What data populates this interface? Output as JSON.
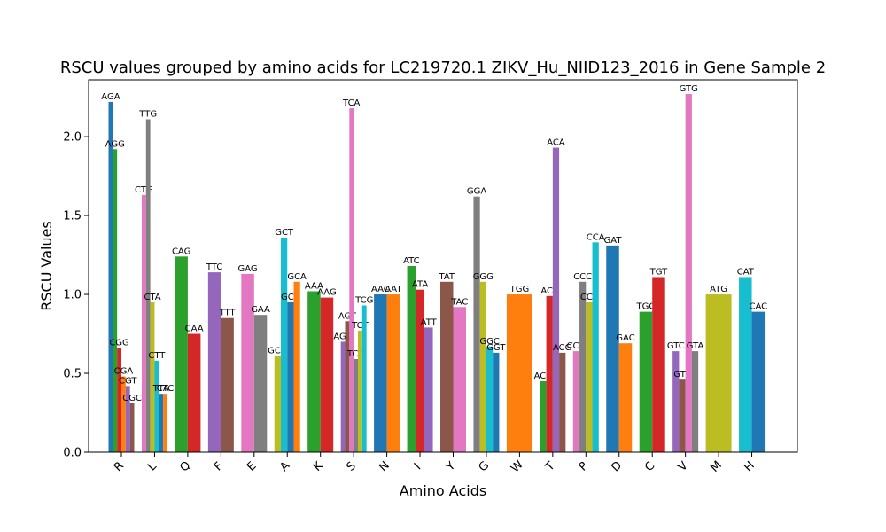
{
  "chart_data": {
    "type": "bar",
    "title": "RSCU values grouped by amino acids for LC219720.1 ZIKV_Hu_NIID123_2016 in Gene Sample 2",
    "xlabel": "Amino Acids",
    "ylabel": "RSCU Values",
    "ylim": [
      0,
      2.36
    ],
    "yticks": [
      "0.0",
      "0.5",
      "1.0",
      "1.5",
      "2.0"
    ],
    "grid": false,
    "groups": [
      {
        "amino_acid": "R",
        "codons": [
          {
            "codon": "AGA",
            "value": 2.22,
            "color": "#1f77b4"
          },
          {
            "codon": "AGG",
            "value": 1.92,
            "color": "#2ca02c"
          },
          {
            "codon": "CGG",
            "value": 0.66,
            "color": "#d62728"
          },
          {
            "codon": "CGA",
            "value": 0.48,
            "color": "#ff7f0e"
          },
          {
            "codon": "CGT",
            "value": 0.42,
            "color": "#9467bd"
          },
          {
            "codon": "CGC",
            "value": 0.31,
            "color": "#8c564b"
          }
        ]
      },
      {
        "amino_acid": "L",
        "codons": [
          {
            "codon": "CTG",
            "value": 1.63,
            "color": "#e377c2"
          },
          {
            "codon": "TTG",
            "value": 2.11,
            "color": "#7f7f7f"
          },
          {
            "codon": "CTA",
            "value": 0.95,
            "color": "#bcbd22"
          },
          {
            "codon": "CTT",
            "value": 0.58,
            "color": "#17becf"
          },
          {
            "codon": "TTA",
            "value": 0.37,
            "color": "#1f77b4"
          },
          {
            "codon": "CTC",
            "value": 0.37,
            "color": "#ff7f0e"
          }
        ]
      },
      {
        "amino_acid": "Q",
        "codons": [
          {
            "codon": "CAG",
            "value": 1.24,
            "color": "#2ca02c"
          },
          {
            "codon": "CAA",
            "value": 0.75,
            "color": "#d62728"
          }
        ]
      },
      {
        "amino_acid": "F",
        "codons": [
          {
            "codon": "TTC",
            "value": 1.14,
            "color": "#9467bd"
          },
          {
            "codon": "TTT",
            "value": 0.85,
            "color": "#8c564b"
          }
        ]
      },
      {
        "amino_acid": "E",
        "codons": [
          {
            "codon": "GAG",
            "value": 1.13,
            "color": "#e377c2"
          },
          {
            "codon": "GAA",
            "value": 0.87,
            "color": "#7f7f7f"
          }
        ]
      },
      {
        "amino_acid": "A",
        "codons": [
          {
            "codon": "GCG",
            "value": 0.61,
            "color": "#bcbd22"
          },
          {
            "codon": "GCT",
            "value": 1.36,
            "color": "#17becf"
          },
          {
            "codon": "GCC",
            "value": 0.95,
            "color": "#1f77b4"
          },
          {
            "codon": "GCA",
            "value": 1.08,
            "color": "#ff7f0e"
          }
        ]
      },
      {
        "amino_acid": "K",
        "codons": [
          {
            "codon": "AAA",
            "value": 1.02,
            "color": "#2ca02c"
          },
          {
            "codon": "AAG",
            "value": 0.98,
            "color": "#d62728"
          }
        ]
      },
      {
        "amino_acid": "S",
        "codons": [
          {
            "codon": "AGC",
            "value": 0.7,
            "color": "#9467bd"
          },
          {
            "codon": "AGT",
            "value": 0.83,
            "color": "#8c564b"
          },
          {
            "codon": "TCA",
            "value": 2.18,
            "color": "#e377c2"
          },
          {
            "codon": "TCC",
            "value": 0.59,
            "color": "#7f7f7f"
          },
          {
            "codon": "TCT",
            "value": 0.77,
            "color": "#bcbd22"
          },
          {
            "codon": "TCG",
            "value": 0.93,
            "color": "#17becf"
          }
        ]
      },
      {
        "amino_acid": "N",
        "codons": [
          {
            "codon": "AAC",
            "value": 1.0,
            "color": "#1f77b4"
          },
          {
            "codon": "AAT",
            "value": 1.0,
            "color": "#ff7f0e"
          }
        ]
      },
      {
        "amino_acid": "I",
        "codons": [
          {
            "codon": "ATC",
            "value": 1.18,
            "color": "#2ca02c"
          },
          {
            "codon": "ATA",
            "value": 1.03,
            "color": "#d62728"
          },
          {
            "codon": "ATT",
            "value": 0.79,
            "color": "#9467bd"
          }
        ]
      },
      {
        "amino_acid": "Y",
        "codons": [
          {
            "codon": "TAT",
            "value": 1.08,
            "color": "#8c564b"
          },
          {
            "codon": "TAC",
            "value": 0.92,
            "color": "#e377c2"
          }
        ]
      },
      {
        "amino_acid": "G",
        "codons": [
          {
            "codon": "GGA",
            "value": 1.62,
            "color": "#7f7f7f"
          },
          {
            "codon": "GGG",
            "value": 1.08,
            "color": "#bcbd22"
          },
          {
            "codon": "GGC",
            "value": 0.67,
            "color": "#17becf"
          },
          {
            "codon": "GGT",
            "value": 0.63,
            "color": "#1f77b4"
          }
        ]
      },
      {
        "amino_acid": "W",
        "codons": [
          {
            "codon": "TGG",
            "value": 1.0,
            "color": "#ff7f0e"
          }
        ]
      },
      {
        "amino_acid": "T",
        "codons": [
          {
            "codon": "ACC",
            "value": 0.45,
            "color": "#2ca02c"
          },
          {
            "codon": "ACT",
            "value": 0.99,
            "color": "#d62728"
          },
          {
            "codon": "ACA",
            "value": 1.93,
            "color": "#9467bd"
          },
          {
            "codon": "ACG",
            "value": 0.63,
            "color": "#8c564b"
          }
        ]
      },
      {
        "amino_acid": "P",
        "codons": [
          {
            "codon": "CCG",
            "value": 0.64,
            "color": "#e377c2"
          },
          {
            "codon": "CCC",
            "value": 1.08,
            "color": "#7f7f7f"
          },
          {
            "codon": "CCT",
            "value": 0.95,
            "color": "#bcbd22"
          },
          {
            "codon": "CCA",
            "value": 1.33,
            "color": "#17becf"
          }
        ]
      },
      {
        "amino_acid": "D",
        "codons": [
          {
            "codon": "GAT",
            "value": 1.31,
            "color": "#1f77b4"
          },
          {
            "codon": "GAC",
            "value": 0.69,
            "color": "#ff7f0e"
          }
        ]
      },
      {
        "amino_acid": "C",
        "codons": [
          {
            "codon": "TGC",
            "value": 0.89,
            "color": "#2ca02c"
          },
          {
            "codon": "TGT",
            "value": 1.11,
            "color": "#d62728"
          }
        ]
      },
      {
        "amino_acid": "V",
        "codons": [
          {
            "codon": "GTC",
            "value": 0.64,
            "color": "#9467bd"
          },
          {
            "codon": "GTT",
            "value": 0.46,
            "color": "#8c564b"
          },
          {
            "codon": "GTG",
            "value": 2.27,
            "color": "#e377c2"
          },
          {
            "codon": "GTA",
            "value": 0.64,
            "color": "#7f7f7f"
          }
        ]
      },
      {
        "amino_acid": "M",
        "codons": [
          {
            "codon": "ATG",
            "value": 1.0,
            "color": "#bcbd22"
          }
        ]
      },
      {
        "amino_acid": "H",
        "codons": [
          {
            "codon": "CAT",
            "value": 1.11,
            "color": "#17becf"
          },
          {
            "codon": "CAC",
            "value": 0.89,
            "color": "#1f77b4"
          }
        ]
      }
    ]
  }
}
